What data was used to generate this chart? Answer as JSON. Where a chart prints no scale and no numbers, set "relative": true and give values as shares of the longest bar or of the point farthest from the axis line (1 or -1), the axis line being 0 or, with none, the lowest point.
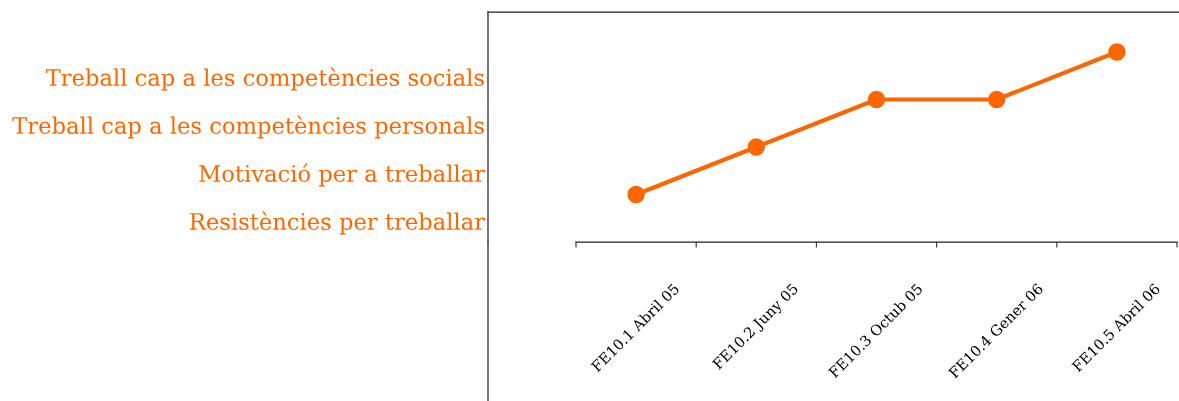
{
  "chart_data": {
    "type": "line",
    "relative": true,
    "categories": [
      "FE10.1 Abril 05",
      "FE10.2 Juny 05",
      "FE10.3 Octub 05",
      "FE10.4 Gener 06",
      "FE10.5 Abril 06"
    ],
    "series": [
      {
        "color": "#ff6600",
        "values": [
          0.25,
          0.5,
          0.75,
          0.75,
          1
        ]
      }
    ],
    "annotations": [
      "Treball cap a les competències socials",
      "Treball cap a les competències personals",
      "Motivació per a treballar",
      "Resistències per treballar"
    ],
    "marker": "circle",
    "line_style": "solid",
    "grid": false
  }
}
